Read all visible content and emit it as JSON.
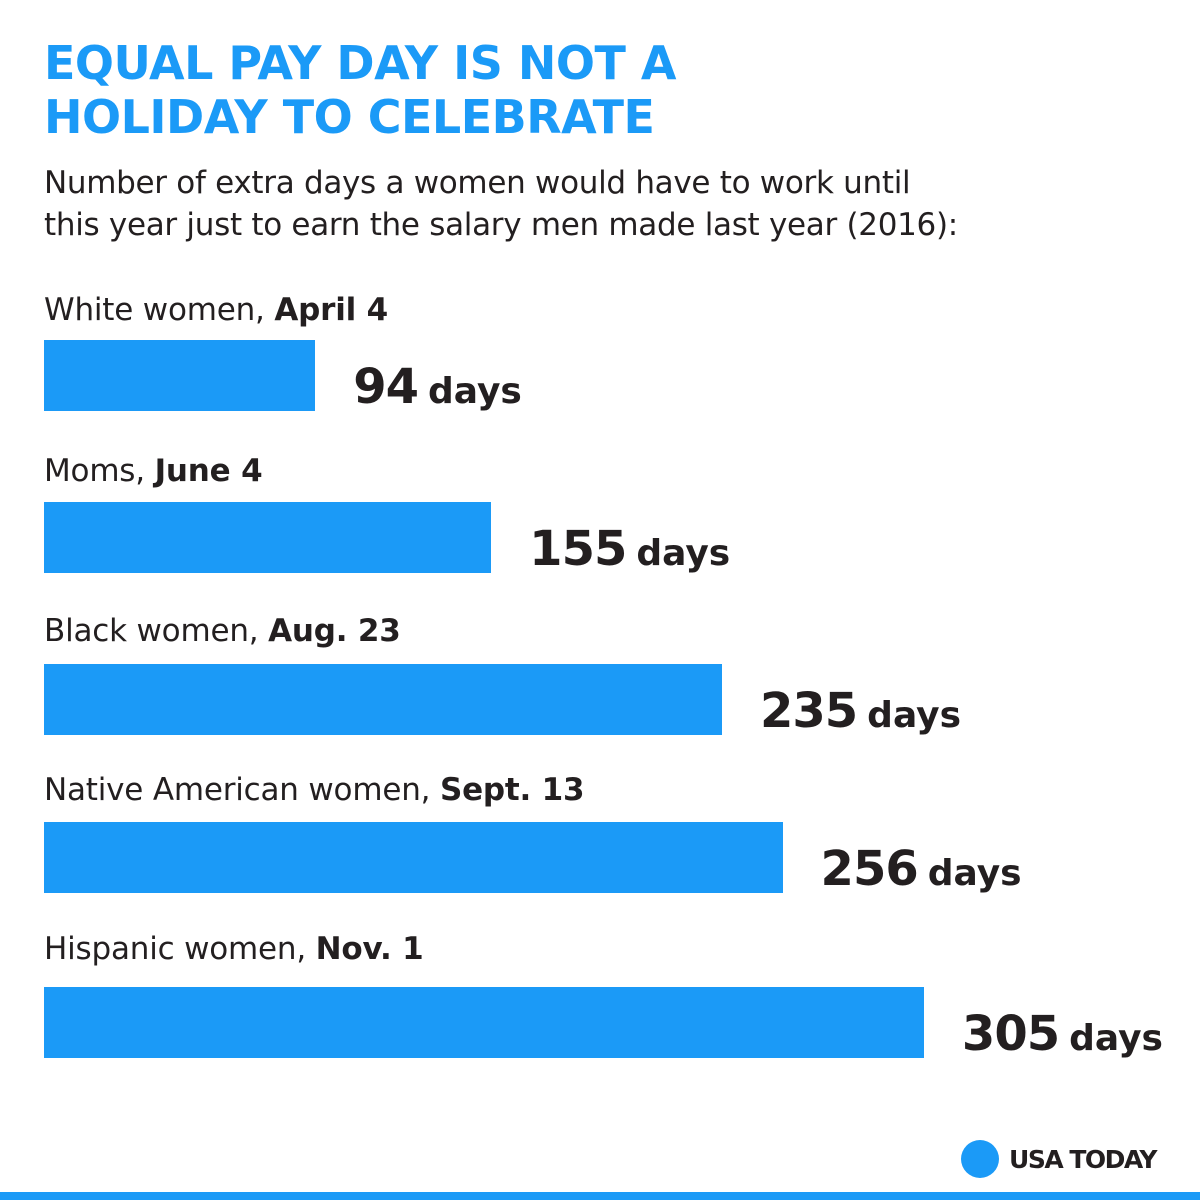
{
  "header": {
    "title_line1": "EQUAL PAY DAY IS NOT A",
    "title_line2": "HOLIDAY TO CELEBRATE",
    "subtitle_line1": "Number of extra days a women would have to work until",
    "subtitle_line2": "this year just to earn the salary men made last year (2016):"
  },
  "chart_data": {
    "type": "bar",
    "orientation": "horizontal",
    "title": "EQUAL PAY DAY IS NOT A HOLIDAY TO CELEBRATE",
    "subtitle": "Number of extra days a women would have to work until this year just to earn the salary men made last year (2016):",
    "unit": "days",
    "xlim": [
      0,
      365
    ],
    "grid": false,
    "color": "#1b9af7",
    "categories": [
      {
        "label": "White women, ",
        "date": "April 4",
        "value": 94
      },
      {
        "label": "Moms, ",
        "date": "June 4",
        "value": 155
      },
      {
        "label": "Black women, ",
        "date": "Aug. 23",
        "value": 235
      },
      {
        "label": "Native American women, ",
        "date": "Sept. 13",
        "value": 256
      },
      {
        "label": "Hispanic women, ",
        "date": "Nov. 1",
        "value": 305
      }
    ]
  },
  "brand": {
    "logo_text": "USA TODAY",
    "accent": "#1b9af7"
  }
}
